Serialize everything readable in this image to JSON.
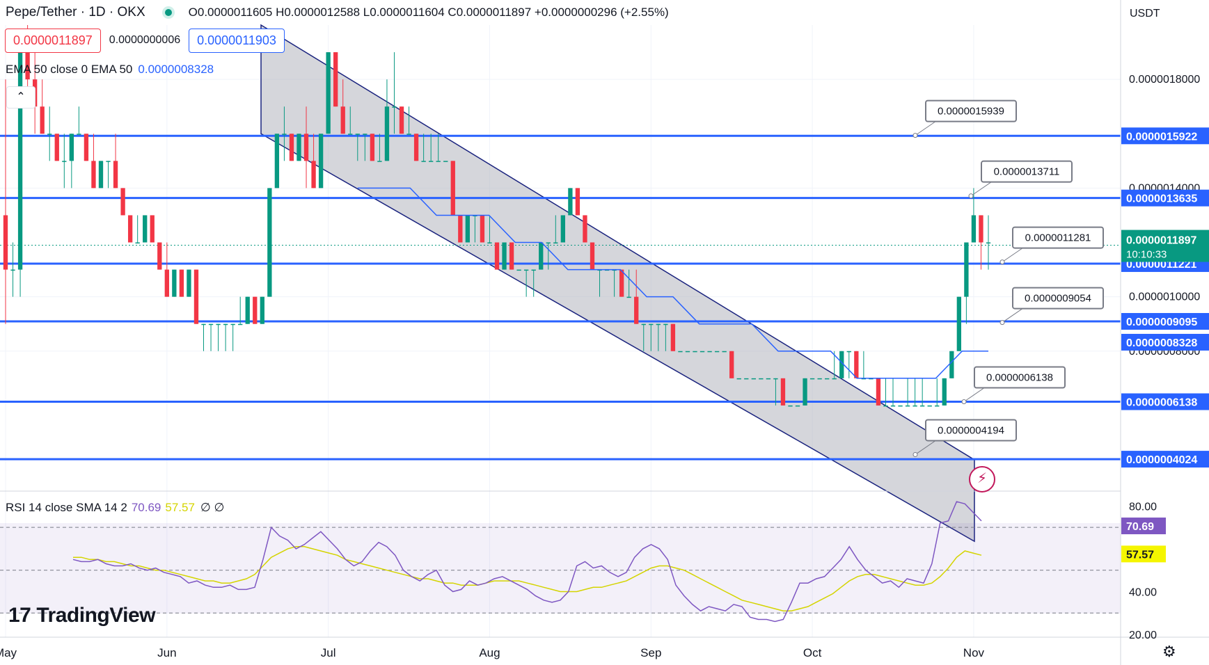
{
  "header": {
    "symbol": "Pepe/Tether · 1D · OKX",
    "ohlc": "O0.0000011605 H0.0000012588 L0.0000011604 C0.0000011897 +0.0000000296 (+2.55%)",
    "price_sell": "0.0000011897",
    "spread": "0.0000000006",
    "price_buy": "0.0000011903",
    "currency": "USDT"
  },
  "indicators": {
    "ema_label": "EMA 50 close 0 EMA 50",
    "ema_value": "0.0000008328",
    "rsi_label": "RSI 14 close SMA 14 2",
    "rsi_value": "70.69",
    "rsi_sma_value": "57.57",
    "rsi_extra": "∅ ∅"
  },
  "branding": {
    "logo_text": "TradingView"
  },
  "colors": {
    "up": "#089981",
    "down": "#f23645",
    "level_line": "#2962ff",
    "ema": "#2962ff",
    "rsi": "#7e57c2",
    "rsi_sma": "#d4d400",
    "channel_fill": "#b2b5be",
    "current_price": "#089981"
  },
  "chart_data": [
    {
      "type": "candlestick",
      "title": "Pepe/Tether · 1D · OKX",
      "x_ticks": [
        "May",
        "Jun",
        "Jul",
        "Aug",
        "Sep",
        "Oct",
        "Nov"
      ],
      "y_ticks": [
        "0.0000018000",
        "0.0000014000",
        "0.0000010000",
        "0.0000008000"
      ],
      "ylim": [
        2.9e-07,
        2e-06
      ],
      "date_range": [
        "May 1",
        "Oct 28"
      ],
      "candles": [
        [
          1.3e-06,
          1.8e-06,
          9e-07,
          1.1e-06
        ],
        [
          1.1e-06,
          1.2e-06,
          1e-06,
          1.1e-06
        ],
        [
          1.1e-06,
          1.9e-06,
          1e-06,
          1.9e-06
        ],
        [
          1.9e-06,
          2e-06,
          1.7e-06,
          1.8e-06
        ],
        [
          1.8e-06,
          1.9e-06,
          1.6e-06,
          1.7e-06
        ],
        [
          1.7e-06,
          1.8e-06,
          1.6e-06,
          1.6e-06
        ],
        [
          1.6e-06,
          1.7e-06,
          1.5e-06,
          1.6e-06
        ],
        [
          1.6e-06,
          1.6e-06,
          1.5e-06,
          1.5e-06
        ],
        [
          1.5e-06,
          1.6e-06,
          1.4e-06,
          1.5e-06
        ],
        [
          1.5e-06,
          1.6e-06,
          1.4e-06,
          1.6e-06
        ],
        [
          1.6e-06,
          1.7e-06,
          1.6e-06,
          1.6e-06
        ],
        [
          1.6e-06,
          1.6e-06,
          1.5e-06,
          1.5e-06
        ],
        [
          1.5e-06,
          1.6e-06,
          1.4e-06,
          1.4e-06
        ],
        [
          1.4e-06,
          1.5e-06,
          1.4e-06,
          1.5e-06
        ],
        [
          1.5e-06,
          1.5e-06,
          1.4e-06,
          1.5e-06
        ],
        [
          1.5e-06,
          1.6e-06,
          1.4e-06,
          1.4e-06
        ],
        [
          1.4e-06,
          1.4e-06,
          1.3e-06,
          1.3e-06
        ],
        [
          1.3e-06,
          1.3e-06,
          1.2e-06,
          1.2e-06
        ],
        [
          1.2e-06,
          1.3e-06,
          1.2e-06,
          1.2e-06
        ],
        [
          1.2e-06,
          1.3e-06,
          1.2e-06,
          1.3e-06
        ],
        [
          1.3e-06,
          1.3e-06,
          1.2e-06,
          1.2e-06
        ],
        [
          1.2e-06,
          1.2e-06,
          1.1e-06,
          1.1e-06
        ],
        [
          1.1e-06,
          1.2e-06,
          1e-06,
          1e-06
        ],
        [
          1e-06,
          1.1e-06,
          1e-06,
          1.1e-06
        ],
        [
          1.1e-06,
          1.1e-06,
          1e-06,
          1e-06
        ],
        [
          1e-06,
          1.1e-06,
          1e-06,
          1.1e-06
        ],
        [
          1.1e-06,
          1.1e-06,
          9e-07,
          9e-07
        ],
        [
          9e-07,
          9e-07,
          8e-07,
          9e-07
        ],
        [
          9e-07,
          9e-07,
          8e-07,
          9e-07
        ],
        [
          9e-07,
          9e-07,
          8e-07,
          9e-07
        ],
        [
          9e-07,
          9e-07,
          8e-07,
          9e-07
        ],
        [
          9e-07,
          9e-07,
          8e-07,
          9e-07
        ],
        [
          9e-07,
          1e-06,
          9e-07,
          9e-07
        ],
        [
          9e-07,
          1e-06,
          9e-07,
          1e-06
        ],
        [
          1e-06,
          1e-06,
          9e-07,
          9e-07
        ],
        [
          9e-07,
          1e-06,
          9e-07,
          1e-06
        ],
        [
          1e-06,
          1.4e-06,
          1e-06,
          1.4e-06
        ],
        [
          1.4e-06,
          1.6e-06,
          1.4e-06,
          1.6e-06
        ],
        [
          1.6e-06,
          1.7e-06,
          1.5e-06,
          1.6e-06
        ],
        [
          1.6e-06,
          1.6e-06,
          1.5e-06,
          1.5e-06
        ],
        [
          1.5e-06,
          1.6e-06,
          1.5e-06,
          1.6e-06
        ],
        [
          1.6e-06,
          1.7e-06,
          1.4e-06,
          1.5e-06
        ],
        [
          1.5e-06,
          1.6e-06,
          1.4e-06,
          1.4e-06
        ],
        [
          1.4e-06,
          1.6e-06,
          1.4e-06,
          1.6e-06
        ],
        [
          1.6e-06,
          1.9e-06,
          1.6e-06,
          1.9e-06
        ],
        [
          1.9e-06,
          1.9e-06,
          1.7e-06,
          1.7e-06
        ],
        [
          1.7e-06,
          1.8e-06,
          1.6e-06,
          1.6e-06
        ],
        [
          1.6e-06,
          1.7e-06,
          1.6e-06,
          1.6e-06
        ],
        [
          1.6e-06,
          1.6e-06,
          1.5e-06,
          1.6e-06
        ],
        [
          1.6e-06,
          1.6e-06,
          1.5e-06,
          1.6e-06
        ],
        [
          1.6e-06,
          1.6e-06,
          1.5e-06,
          1.5e-06
        ],
        [
          1.5e-06,
          1.6e-06,
          1.5e-06,
          1.5e-06
        ],
        [
          1.5e-06,
          1.8e-06,
          1.5e-06,
          1.7e-06
        ],
        [
          1.7e-06,
          1.9e-06,
          1.6e-06,
          1.7e-06
        ],
        [
          1.7e-06,
          1.7e-06,
          1.6e-06,
          1.6e-06
        ],
        [
          1.6e-06,
          1.7e-06,
          1.6e-06,
          1.6e-06
        ],
        [
          1.6e-06,
          1.6e-06,
          1.5e-06,
          1.5e-06
        ],
        [
          1.5e-06,
          1.6e-06,
          1.5e-06,
          1.5e-06
        ],
        [
          1.5e-06,
          1.6e-06,
          1.5e-06,
          1.5e-06
        ],
        [
          1.5e-06,
          1.6e-06,
          1.5e-06,
          1.5e-06
        ],
        [
          1.5e-06,
          1.5e-06,
          1.5e-06,
          1.5e-06
        ],
        [
          1.5e-06,
          1.5e-06,
          1.3e-06,
          1.3e-06
        ],
        [
          1.3e-06,
          1.3e-06,
          1.2e-06,
          1.2e-06
        ],
        [
          1.2e-06,
          1.3e-06,
          1.2e-06,
          1.3e-06
        ],
        [
          1.3e-06,
          1.3e-06,
          1.2e-06,
          1.3e-06
        ],
        [
          1.3e-06,
          1.3e-06,
          1.2e-06,
          1.2e-06
        ],
        [
          1.2e-06,
          1.3e-06,
          1.2e-06,
          1.2e-06
        ],
        [
          1.2e-06,
          1.2e-06,
          1.1e-06,
          1.1e-06
        ],
        [
          1.1e-06,
          1.2e-06,
          1.1e-06,
          1.2e-06
        ],
        [
          1.2e-06,
          1.2e-06,
          1.1e-06,
          1.1e-06
        ],
        [
          1.1e-06,
          1.1e-06,
          1.1e-06,
          1.1e-06
        ],
        [
          1.1e-06,
          1.1e-06,
          1e-06,
          1.1e-06
        ],
        [
          1.1e-06,
          1.1e-06,
          1e-06,
          1.1e-06
        ],
        [
          1.1e-06,
          1.2e-06,
          1.1e-06,
          1.2e-06
        ],
        [
          1.2e-06,
          1.2e-06,
          1.1e-06,
          1.2e-06
        ],
        [
          1.2e-06,
          1.3e-06,
          1.2e-06,
          1.2e-06
        ],
        [
          1.2e-06,
          1.3e-06,
          1.2e-06,
          1.3e-06
        ],
        [
          1.3e-06,
          1.4e-06,
          1.3e-06,
          1.4e-06
        ],
        [
          1.4e-06,
          1.4e-06,
          1.3e-06,
          1.3e-06
        ],
        [
          1.3e-06,
          1.3e-06,
          1.2e-06,
          1.2e-06
        ],
        [
          1.2e-06,
          1.2e-06,
          1.1e-06,
          1.1e-06
        ],
        [
          1.1e-06,
          1.1e-06,
          1e-06,
          1.1e-06
        ],
        [
          1.1e-06,
          1.1e-06,
          1.1e-06,
          1.1e-06
        ],
        [
          1.1e-06,
          1.1e-06,
          1e-06,
          1.1e-06
        ],
        [
          1.1e-06,
          1.1e-06,
          1e-06,
          1e-06
        ],
        [
          1e-06,
          1.1e-06,
          1e-06,
          1e-06
        ],
        [
          1e-06,
          1.1e-06,
          9e-07,
          9e-07
        ],
        [
          9e-07,
          9e-07,
          8e-07,
          9e-07
        ],
        [
          9e-07,
          9e-07,
          8e-07,
          9e-07
        ],
        [
          9e-07,
          9e-07,
          8e-07,
          9e-07
        ],
        [
          9e-07,
          9e-07,
          8e-07,
          9e-07
        ],
        [
          9e-07,
          9e-07,
          8e-07,
          8e-07
        ],
        [
          8e-07,
          8e-07,
          8e-07,
          8e-07
        ],
        [
          8e-07,
          8e-07,
          8e-07,
          8e-07
        ],
        [
          8e-07,
          8e-07,
          8e-07,
          8e-07
        ],
        [
          8e-07,
          8e-07,
          8e-07,
          8e-07
        ],
        [
          8e-07,
          8e-07,
          8e-07,
          8e-07
        ],
        [
          8e-07,
          8e-07,
          8e-07,
          8e-07
        ],
        [
          8e-07,
          8e-07,
          8e-07,
          8e-07
        ],
        [
          8e-07,
          8e-07,
          7e-07,
          7e-07
        ],
        [
          7e-07,
          7e-07,
          7e-07,
          7e-07
        ],
        [
          7e-07,
          7e-07,
          7e-07,
          7e-07
        ],
        [
          7e-07,
          7e-07,
          7e-07,
          7e-07
        ],
        [
          7e-07,
          7e-07,
          7e-07,
          7e-07
        ],
        [
          7e-07,
          7e-07,
          7e-07,
          7e-07
        ],
        [
          7e-07,
          7e-07,
          6e-07,
          7e-07
        ],
        [
          7e-07,
          7e-07,
          6e-07,
          6e-07
        ],
        [
          6e-07,
          6e-07,
          6e-07,
          6e-07
        ],
        [
          6e-07,
          6e-07,
          6e-07,
          6e-07
        ],
        [
          6e-07,
          7e-07,
          6e-07,
          7e-07
        ],
        [
          7e-07,
          7e-07,
          7e-07,
          7e-07
        ],
        [
          7e-07,
          7e-07,
          7e-07,
          7e-07
        ],
        [
          7e-07,
          7e-07,
          7e-07,
          7e-07
        ],
        [
          7e-07,
          8e-07,
          7e-07,
          7e-07
        ],
        [
          7e-07,
          8e-07,
          7e-07,
          8e-07
        ],
        [
          8e-07,
          8e-07,
          7e-07,
          8e-07
        ],
        [
          8e-07,
          8e-07,
          7e-07,
          7e-07
        ],
        [
          7e-07,
          8e-07,
          7e-07,
          7e-07
        ],
        [
          7e-07,
          7e-07,
          7e-07,
          7e-07
        ],
        [
          7e-07,
          7e-07,
          6e-07,
          6e-07
        ],
        [
          6e-07,
          7e-07,
          6e-07,
          6e-07
        ],
        [
          6e-07,
          7e-07,
          6e-07,
          6e-07
        ],
        [
          6e-07,
          6e-07,
          6e-07,
          6e-07
        ],
        [
          6e-07,
          7e-07,
          6e-07,
          6e-07
        ],
        [
          6e-07,
          7e-07,
          6e-07,
          6e-07
        ],
        [
          6e-07,
          7e-07,
          6e-07,
          6e-07
        ],
        [
          6e-07,
          6e-07,
          6e-07,
          6e-07
        ],
        [
          6e-07,
          7e-07,
          6e-07,
          6e-07
        ],
        [
          6e-07,
          7e-07,
          6e-07,
          7e-07
        ],
        [
          7e-07,
          8e-07,
          7e-07,
          8e-07
        ],
        [
          8e-07,
          1e-06,
          8e-07,
          1e-06
        ],
        [
          1e-06,
          1.2e-06,
          9e-07,
          1.2e-06
        ],
        [
          1.2e-06,
          1.4e-06,
          1.2e-06,
          1.3e-06
        ],
        [
          1.3e-06,
          1.3e-06,
          1.1e-06,
          1.2e-06
        ],
        [
          1.2e-06,
          1.3e-06,
          1.1e-06,
          1.2e-06
        ]
      ],
      "ema50": [
        1.4e-06,
        1.4e-06,
        1.4e-06,
        1.3e-06,
        1.3e-06,
        1.3e-06,
        1.2e-06,
        1.2e-06,
        1.1e-06,
        1.1e-06,
        1.1e-06,
        1e-06,
        1e-06,
        9e-07,
        9e-07,
        9e-07,
        8e-07,
        8e-07,
        8e-07,
        7e-07,
        7e-07,
        7e-07,
        7e-07,
        8e-07,
        8e-07
      ],
      "horizontal_levels": [
        "0.0000015922",
        "0.0000013635",
        "0.0000011221",
        "0.0000009095",
        "0.0000006138",
        "0.0000004024"
      ],
      "level_values": [
        1.5922e-06,
        1.3635e-06,
        1.1221e-06,
        9.095e-07,
        6.138e-07,
        4.024e-07
      ],
      "callouts": [
        "0.0000015939",
        "0.0000013711",
        "0.0000011281",
        "0.0000009054",
        "0.0000006138",
        "0.0000004194"
      ],
      "callout_values": [
        1.5939e-06,
        1.3711e-06,
        1.1281e-06,
        9.054e-07,
        6.138e-07,
        4.194e-07
      ],
      "last_price": "0.0000011897",
      "countdown": "10:10:33",
      "ema_price_label": "0.0000008328",
      "channel": {
        "upper_start": 2e-06,
        "upper_end": 4e-07,
        "lower_start": 1.6e-06,
        "lower_end": 1e-07
      }
    },
    {
      "type": "line",
      "title": "RSI 14 close SMA 14 2",
      "y_ticks": [
        "80.00",
        "40.00",
        "20.00"
      ],
      "ylim": [
        20,
        85
      ],
      "bands": [
        70,
        50,
        30
      ],
      "rsi": [
        55,
        54,
        54,
        55,
        53,
        52,
        52,
        53,
        51,
        50,
        51,
        49,
        48,
        47,
        44,
        45,
        43,
        42,
        42,
        43,
        41,
        41,
        42,
        55,
        70,
        66,
        64,
        60,
        62,
        65,
        68,
        64,
        60,
        55,
        52,
        54,
        59,
        63,
        61,
        57,
        50,
        47,
        45,
        48,
        50,
        43,
        40,
        41,
        45,
        43,
        44,
        46,
        47,
        45,
        43,
        41,
        38,
        36,
        35,
        36,
        40,
        52,
        54,
        51,
        52,
        49,
        47,
        49,
        56,
        60,
        62,
        60,
        55,
        43,
        38,
        34,
        31,
        33,
        32,
        31,
        34,
        33,
        28,
        27,
        27,
        26,
        27,
        35,
        44,
        44,
        46,
        47,
        51,
        55,
        61,
        55,
        50,
        47,
        44,
        45,
        42,
        46,
        45,
        44,
        53,
        72,
        73,
        82,
        81,
        77,
        73
      ],
      "rsi_sma": [
        56,
        56,
        55,
        55,
        54,
        54,
        53,
        52,
        52,
        51,
        50,
        50,
        49,
        48,
        47,
        46,
        45,
        45,
        44,
        44,
        45,
        46,
        48,
        52,
        56,
        58,
        60,
        61,
        61,
        60,
        59,
        58,
        57,
        55,
        54,
        53,
        52,
        51,
        50,
        49,
        48,
        47,
        46,
        46,
        45,
        44,
        44,
        43,
        43,
        43,
        44,
        45,
        45,
        45,
        45,
        44,
        43,
        42,
        41,
        40,
        40,
        40,
        41,
        42,
        42,
        43,
        44,
        45,
        47,
        49,
        51,
        52,
        52,
        51,
        50,
        48,
        46,
        44,
        42,
        40,
        38,
        36,
        35,
        34,
        33,
        32,
        31,
        31,
        32,
        33,
        35,
        37,
        39,
        42,
        45,
        47,
        48,
        48,
        47,
        46,
        45,
        44,
        43,
        43,
        44,
        47,
        51,
        56,
        59,
        58,
        57
      ]
    }
  ]
}
